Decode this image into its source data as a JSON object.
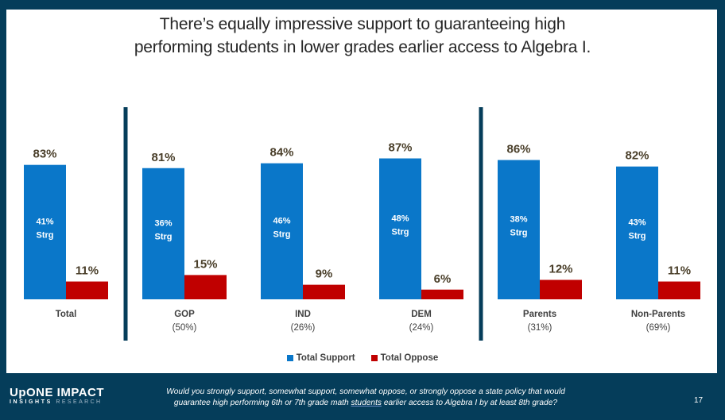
{
  "slide": {
    "title_line1": "There’s equally impressive support to guaranteeing high",
    "title_line2": "performing students in lower grades earlier access to Algebra I.",
    "page_number": "17",
    "question_part1": "Would you strongly support, somewhat support, somewhat oppose, or strongly oppose a state policy that would",
    "question_part2a": "guarantee high performing 6th or 7th grade math ",
    "question_part2_underlined": "students",
    "question_part2b": " earlier access to Algebra I by at least 8th grade?",
    "logo": {
      "line1_a": "UpONE",
      "line1_b": "IMPACT",
      "line2_a": "INSIGHTS",
      "line2_b": "RESEARCH"
    }
  },
  "colors": {
    "support": "#0a77c9",
    "oppose": "#c00000",
    "frame": "#053d5a",
    "value_label": "#4a3f2a",
    "strong_label": "#ffffff"
  },
  "chart_data": {
    "type": "bar",
    "title": "There’s equally impressive support to guaranteeing high performing students in lower grades earlier access to Algebra I.",
    "xlabel": "",
    "ylabel": "",
    "ylim": [
      0,
      100
    ],
    "grid": false,
    "legend_position": "bottom",
    "categories": [
      "Total",
      "GOP",
      "IND",
      "DEM",
      "Parents",
      "Non-Parents"
    ],
    "category_sublabels": [
      "",
      "(50%)",
      "(26%)",
      "(24%)",
      "(31%)",
      "(69%)"
    ],
    "group_separators_after": [
      "Total",
      "DEM"
    ],
    "series": [
      {
        "name": "Total Support",
        "values": [
          83,
          81,
          84,
          87,
          86,
          82
        ],
        "labels": [
          "83%",
          "81%",
          "84%",
          "87%",
          "86%",
          "82%"
        ],
        "strong_values": [
          41,
          36,
          46,
          48,
          38,
          43
        ],
        "strong_labels": [
          "41%",
          "36%",
          "46%",
          "48%",
          "38%",
          "43%"
        ],
        "strong_suffix": "Strg"
      },
      {
        "name": "Total Oppose",
        "values": [
          11,
          15,
          9,
          6,
          12,
          11
        ],
        "labels": [
          "11%",
          "15%",
          "9%",
          "6%",
          "12%",
          "11%"
        ]
      }
    ]
  }
}
